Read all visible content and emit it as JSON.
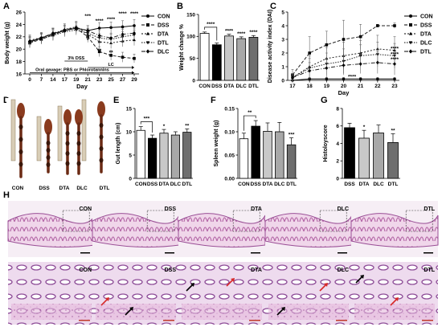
{
  "panel_labels": [
    "A",
    "B",
    "C",
    "D",
    "E",
    "F",
    "G",
    "H"
  ],
  "chart_data": [
    {
      "id": "A",
      "type": "line",
      "xlabel": "Day",
      "ylabel": "Body weight (g)",
      "x": [
        0,
        7,
        14,
        17,
        19,
        21,
        23,
        25,
        27,
        29
      ],
      "xticks": [
        "0",
        "7",
        "14",
        "17",
        "19",
        "21",
        "23",
        "25",
        "27",
        "29"
      ],
      "yticks": [
        "16",
        "18",
        "20",
        "22",
        "24",
        "26"
      ],
      "ylim": [
        16,
        26
      ],
      "series": [
        {
          "name": "CON",
          "marker": "circle",
          "values": [
            21.2,
            21.8,
            22.5,
            23.0,
            23.4,
            23.0,
            23.4,
            23.5,
            23.6,
            23.8
          ],
          "err": [
            0.8,
            0.8,
            0.9,
            0.8,
            0.9,
            0.8,
            0.9,
            0.9,
            1.0,
            1.0
          ]
        },
        {
          "name": "DSS",
          "marker": "square",
          "values": [
            21.0,
            21.6,
            22.3,
            23.0,
            23.4,
            22.0,
            19.6,
            19.0,
            18.7,
            18.5
          ],
          "err": [
            0.8,
            0.8,
            0.9,
            0.9,
            0.9,
            0.9,
            0.8,
            0.8,
            0.8,
            0.7
          ]
        },
        {
          "name": "DTA",
          "marker": "triangle",
          "values": [
            21.4,
            21.9,
            22.4,
            23.2,
            23.6,
            22.4,
            21.2,
            21.0,
            21.3,
            21.5
          ],
          "err": [
            0.9,
            0.8,
            0.9,
            0.9,
            0.9,
            0.9,
            0.9,
            0.9,
            0.9,
            0.9
          ]
        },
        {
          "name": "DTL",
          "marker": "triangle-down",
          "values": [
            21.1,
            21.7,
            22.2,
            22.8,
            23.1,
            22.6,
            21.8,
            21.6,
            22.0,
            22.3
          ],
          "err": [
            0.8,
            0.8,
            0.8,
            0.8,
            0.8,
            0.8,
            0.8,
            0.8,
            0.8,
            0.8
          ]
        },
        {
          "name": "DLC",
          "marker": "diamond",
          "values": [
            21.3,
            21.8,
            22.6,
            23.1,
            23.5,
            23.0,
            22.2,
            21.8,
            22.4,
            22.6
          ],
          "err": [
            0.8,
            0.8,
            0.8,
            0.8,
            0.8,
            0.8,
            0.8,
            0.8,
            0.8,
            0.8
          ]
        }
      ],
      "annotations": [
        {
          "text": "***",
          "x": 21,
          "y": 25.1
        },
        {
          "text": "****",
          "x": 23,
          "y": 24.3
        },
        {
          "text": "****",
          "x": 25,
          "y": 24.6
        },
        {
          "text": "****",
          "x": 27,
          "y": 25.5
        },
        {
          "text": "****",
          "x": 29,
          "y": 25.5
        },
        {
          "text": "*",
          "x": 21,
          "y": 21.2
        },
        {
          "text": "**",
          "x": 23,
          "y": 19.5
        },
        {
          "text": "**",
          "x": 25,
          "y": 19.2
        }
      ],
      "bracket_labels": {
        "dss": "3% DSS",
        "lc": "LC",
        "gavage": "Oral gavage: PBS or Phlorotannins"
      },
      "legend": "right"
    },
    {
      "id": "B",
      "type": "bar",
      "ylabel": "Weight change %",
      "categories": [
        "CON",
        "DSS",
        "DTA",
        "DLC",
        "DTL"
      ],
      "values": [
        107,
        81,
        101,
        95,
        98
      ],
      "err": [
        3,
        4,
        4,
        4,
        4
      ],
      "fills": [
        "#ffffff",
        "#000000",
        "#c8c8c8",
        "#a8a8a8",
        "#6e6e6e"
      ],
      "yticks": [
        "0",
        "50",
        "100",
        "150"
      ],
      "ylim": [
        0,
        150
      ],
      "sig": [
        "",
        "",
        "****",
        "****",
        "****"
      ],
      "bracket": {
        "from": 0,
        "to": 1,
        "text": "****"
      }
    },
    {
      "id": "C",
      "type": "line",
      "xlabel": "Day",
      "ylabel": "Disease activity index (DAI)",
      "x": [
        17,
        18,
        19,
        20,
        21,
        22,
        23
      ],
      "xticks": [
        "17",
        "18",
        "19",
        "20",
        "21",
        "22",
        "23"
      ],
      "yticks": [
        "0",
        "1",
        "2",
        "3",
        "4",
        "5"
      ],
      "ylim": [
        0,
        5
      ],
      "series": [
        {
          "name": "CON",
          "marker": "circle",
          "values": [
            0,
            0.1,
            0.1,
            0.1,
            0.1,
            0.1,
            0.1
          ],
          "err": [
            0.05,
            0.1,
            0.1,
            0.1,
            0.1,
            0.1,
            0.1
          ]
        },
        {
          "name": "DSS",
          "marker": "square",
          "values": [
            0.4,
            2.0,
            2.6,
            3.0,
            3.2,
            4.0,
            4.0
          ],
          "err": [
            0.4,
            1.2,
            1.0,
            1.4,
            0.9,
            0.1,
            0.2
          ]
        },
        {
          "name": "DTA",
          "marker": "triangle",
          "values": [
            0.2,
            1.0,
            1.6,
            1.8,
            2.0,
            2.3,
            2.2
          ],
          "err": [
            0.3,
            0.8,
            0.8,
            1.0,
            0.9,
            1.0,
            1.0
          ]
        },
        {
          "name": "DLC",
          "marker": "triangle-down",
          "values": [
            0.2,
            0.9,
            1.2,
            1.4,
            1.8,
            1.9,
            1.8
          ],
          "err": [
            0.3,
            0.7,
            0.8,
            0.9,
            0.8,
            0.9,
            0.9
          ]
        },
        {
          "name": "DTL",
          "marker": "diamond",
          "values": [
            0.2,
            0.7,
            0.9,
            1.1,
            1.2,
            1.3,
            1.2
          ],
          "err": [
            0.3,
            0.6,
            0.7,
            0.7,
            0.7,
            0.8,
            0.8
          ]
        }
      ],
      "annotations": [
        {
          "text": "****",
          "x": 23,
          "y": 2.2
        },
        {
          "text": "****",
          "x": 23,
          "y": 1.8
        },
        {
          "text": "****",
          "x": 23,
          "y": 1.4
        },
        {
          "text": "****",
          "x": 20.5,
          "y": 0.15
        }
      ],
      "legend": "right"
    },
    {
      "id": "E",
      "type": "bar",
      "ylabel": "Gut length (cm)",
      "categories": [
        "CON",
        "DSS",
        "DTA",
        "DLC",
        "DTL"
      ],
      "values": [
        10.3,
        8.6,
        9.7,
        9.3,
        9.9
      ],
      "err": [
        0.8,
        0.7,
        0.8,
        0.7,
        0.7
      ],
      "fills": [
        "#ffffff",
        "#000000",
        "#c8c8c8",
        "#a8a8a8",
        "#6e6e6e"
      ],
      "yticks": [
        "0",
        "5",
        "10",
        "15"
      ],
      "ylim": [
        0,
        15
      ],
      "sig": [
        "",
        "",
        "*",
        "",
        "**"
      ],
      "bracket": {
        "from": 0,
        "to": 1,
        "text": "***"
      }
    },
    {
      "id": "F",
      "type": "bar",
      "ylabel": "Spleen weight (g)",
      "categories": [
        "CON",
        "DSS",
        "DTA",
        "DLC",
        "DTL"
      ],
      "values": [
        0.085,
        0.112,
        0.101,
        0.1,
        0.072
      ],
      "err": [
        0.012,
        0.012,
        0.018,
        0.02,
        0.015
      ],
      "fills": [
        "#ffffff",
        "#000000",
        "#c8c8c8",
        "#a8a8a8",
        "#6e6e6e"
      ],
      "yticks": [
        "0.00",
        "0.05",
        "0.10",
        "0.15"
      ],
      "ylim": [
        0,
        0.15
      ],
      "sig": [
        "",
        "",
        "",
        "",
        "***"
      ],
      "bracket": {
        "from": 0,
        "to": 1,
        "text": "**"
      }
    },
    {
      "id": "G",
      "type": "bar",
      "ylabel": "Histoloyscore",
      "categories": [
        "DSS",
        "DTA",
        "DLC",
        "DTL"
      ],
      "values": [
        5.8,
        4.6,
        5.2,
        4.1
      ],
      "err": [
        0.5,
        0.9,
        0.9,
        1.0
      ],
      "fills": [
        "#000000",
        "#c8c8c8",
        "#a8a8a8",
        "#6e6e6e"
      ],
      "yticks": [
        "0",
        "2",
        "4",
        "6",
        "8"
      ],
      "ylim": [
        0,
        8
      ],
      "sig": [
        "",
        "*",
        "",
        "**"
      ]
    }
  ],
  "photo_d": {
    "labels": [
      "CON",
      "DSS",
      "DTA",
      "DLC",
      "DTL"
    ]
  },
  "histology": {
    "labels": [
      "CON",
      "DSS",
      "DTA",
      "DLC",
      "DTL"
    ]
  }
}
